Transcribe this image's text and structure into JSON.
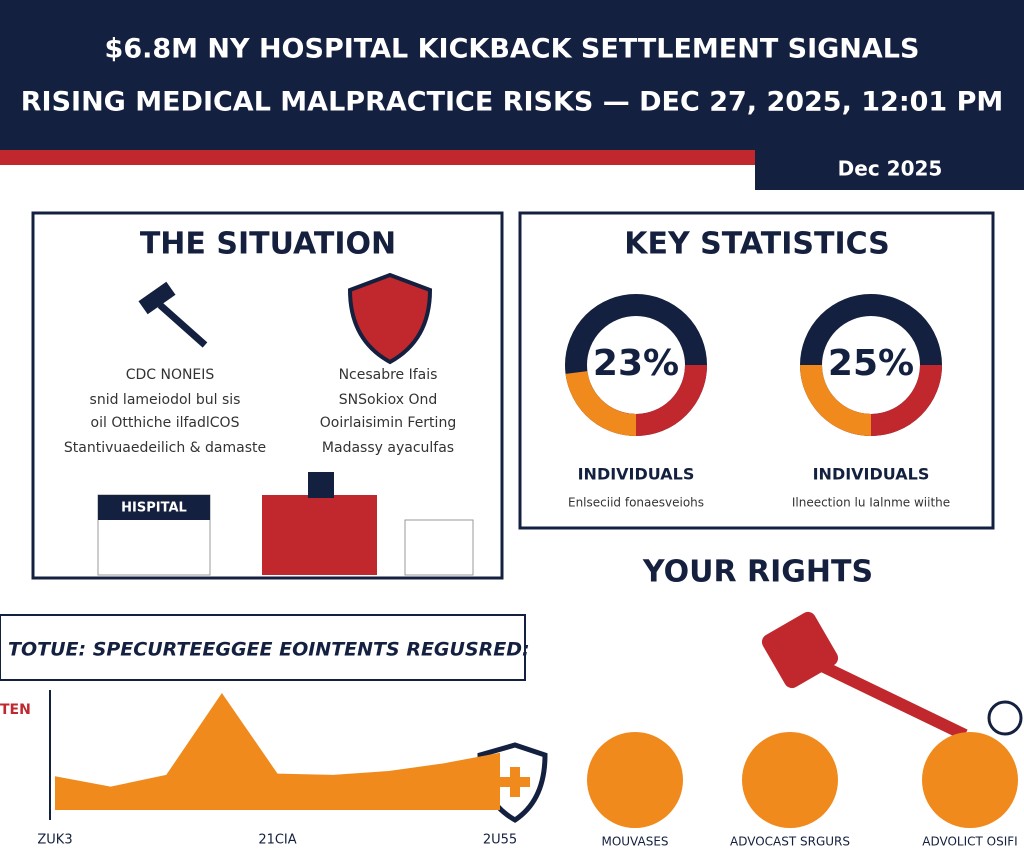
{
  "header": {
    "title_line1": "$6.8M NY HOSPITAL KICKBACK SETTLEMENT SIGNALS",
    "title_line2": "RISING MEDICAL MALPRACTICE RISKS — DEC 27, 2025, 12:01 PM",
    "date_badge": "Dec 2025"
  },
  "situation": {
    "title": "THE SITUATION",
    "left_heading": "CDC NONEIS",
    "left_lines": [
      "snid lameiodol bul sis",
      "oil Otthiche ilfadlCOS",
      "Stantivuaedeilich & damaste"
    ],
    "right_heading": "Ncesabre Ifais",
    "right_lines": [
      "SNSokiox Ond",
      "Ooirlaisimin Ferting",
      "Madassy ayaculfas"
    ],
    "hospital_sign": "HISPITAL"
  },
  "key_statistics": {
    "title": "KEY STATISTICS",
    "stats": [
      {
        "value": 23,
        "value_label": "23%",
        "label": "INDIVIDUALS",
        "note": "Enlseciid fonaesveiohs"
      },
      {
        "value": 25,
        "value_label": "25%",
        "label": "INDIVIDUALS",
        "note": "Ilneection lu Ialnme wiithe"
      }
    ]
  },
  "your_rights": {
    "title": "YOUR RIGHTS",
    "items": [
      "MOUVASES",
      "ADVOCAST SRGURS",
      "ADVOLICT OSIFI"
    ]
  },
  "chart_data": {
    "type": "area",
    "title": "TOTUE: SPECURTEEGGEE EOINTENTS REGUSRED:",
    "y_label": "TEN",
    "x_labels": [
      "ZUK3",
      "21CIA",
      "2U55"
    ],
    "values": [
      26,
      18,
      27,
      90,
      28,
      27,
      30,
      36,
      44
    ],
    "color": "#f08a1c",
    "ylim": [
      0,
      100
    ]
  }
}
